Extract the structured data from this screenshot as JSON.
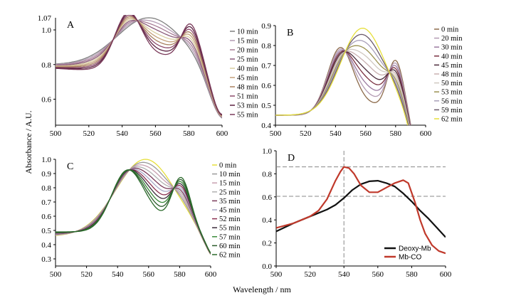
{
  "figure": {
    "ylabel": "Absorbance / A.U.",
    "xlabel": "Wavelength / nm"
  },
  "chart_data": [
    {
      "panel": "A",
      "type": "line",
      "xlim": [
        500,
        600
      ],
      "ylim": [
        0.45,
        1.07
      ],
      "x_ticks": [
        500,
        520,
        540,
        560,
        580,
        600
      ],
      "y_ticks": [
        0.6,
        0.8,
        1.0
      ],
      "y_top_label": "1.07",
      "legend": [
        "10 min",
        "15 min",
        "20 min",
        "25 min",
        "40 min",
        "45 min",
        "48 min",
        "51 min",
        "53 min",
        "55 min"
      ],
      "legend_colors": [
        "#7f7f7f",
        "#b39bb3",
        "#a87d96",
        "#8a5a7a",
        "#d9cda0",
        "#c4a07a",
        "#a8805e",
        "#8c4a6a",
        "#5a2040",
        "#7a3a5a"
      ],
      "series_shape": {
        "start_value": 0.79,
        "start_range": [
          0.78,
          0.8
        ],
        "ends_near": 0.47
      }
    },
    {
      "panel": "B",
      "type": "line",
      "xlim": [
        500,
        600
      ],
      "ylim": [
        0.4,
        0.9
      ],
      "x_ticks": [
        500,
        520,
        540,
        560,
        580,
        600
      ],
      "y_ticks": [
        0.4,
        0.5,
        0.6,
        0.7,
        0.8,
        0.9
      ],
      "legend": [
        "0 min",
        "20 min",
        "30 min",
        "40 min",
        "45 min",
        "48 min",
        "50 min",
        "53 min",
        "56 min",
        "59 min",
        "62 min"
      ],
      "legend_colors": [
        "#8c6a4a",
        "#b39bb3",
        "#9a7aa0",
        "#7a3040",
        "#4a2a3a",
        "#c8b0b0",
        "#d0c8c0",
        "#9a9050",
        "#a89fb8",
        "#6a5a6a",
        "#e6df3a"
      ],
      "series_shape": {
        "start_range": [
          0.43,
          0.47
        ],
        "ends_near": 0.4
      }
    },
    {
      "panel": "C",
      "type": "line",
      "xlim": [
        500,
        600
      ],
      "ylim": [
        0.25,
        1.0
      ],
      "x_ticks": [
        500,
        520,
        540,
        560,
        580,
        600
      ],
      "y_ticks": [
        0.3,
        0.4,
        0.5,
        0.6,
        0.7,
        0.8,
        0.9,
        1.0
      ],
      "legend": [
        "0 min",
        "10 min",
        "15 min",
        "25 min",
        "35 min",
        "45 min",
        "52 min",
        "55 min",
        "57 min",
        "60 min",
        "62 min"
      ],
      "legend_colors": [
        "#e6df3a",
        "#9a9a9a",
        "#c8a0b0",
        "#b0b0b0",
        "#7a3a5a",
        "#a8a8c8",
        "#8a3050",
        "#3a2a3a",
        "#3a8a3a",
        "#2a5a2a",
        "#2a6a2a"
      ],
      "series_shape": {
        "start_range": [
          0.45,
          0.5
        ],
        "ends_near": 0.37
      }
    },
    {
      "panel": "D",
      "type": "line",
      "xlim": [
        500,
        600
      ],
      "ylim": [
        0,
        1.0
      ],
      "x_ticks": [
        500,
        520,
        540,
        560,
        580,
        600
      ],
      "y_ticks": [
        0,
        0.2,
        0.4,
        0.6,
        0.8,
        1.0
      ],
      "guides": {
        "vertical_x": 540,
        "horizontal_y": [
          0.86,
          0.605
        ]
      },
      "series": [
        {
          "name": "Deoxy-Mb",
          "color": "#111111",
          "x": [
            500,
            510,
            520,
            530,
            535,
            540,
            545,
            550,
            555,
            560,
            565,
            570,
            575,
            580,
            585,
            590,
            595,
            600
          ],
          "y": [
            0.3,
            0.37,
            0.43,
            0.49,
            0.53,
            0.59,
            0.66,
            0.71,
            0.735,
            0.74,
            0.72,
            0.69,
            0.63,
            0.56,
            0.48,
            0.41,
            0.33,
            0.25
          ]
        },
        {
          "name": "Mb-CO",
          "color": "#c0392b",
          "x": [
            500,
            510,
            520,
            525,
            530,
            535,
            538,
            540,
            543,
            546,
            550,
            555,
            560,
            565,
            570,
            575,
            578,
            582,
            585,
            588,
            592,
            596,
            600
          ],
          "y": [
            0.33,
            0.37,
            0.43,
            0.48,
            0.58,
            0.74,
            0.82,
            0.86,
            0.85,
            0.8,
            0.7,
            0.64,
            0.64,
            0.68,
            0.72,
            0.745,
            0.72,
            0.55,
            0.4,
            0.28,
            0.18,
            0.13,
            0.11
          ]
        }
      ]
    }
  ]
}
